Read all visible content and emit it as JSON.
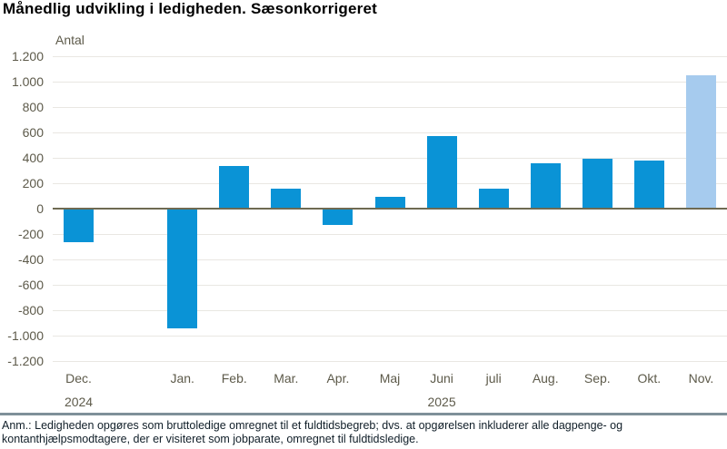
{
  "title": "Månedlig udvikling i ledigheden. Sæsonkorrigeret",
  "chart_data": {
    "type": "bar",
    "title": "Månedlig udvikling i ledigheden. Sæsonkorrigeret",
    "ylabel": "Antal",
    "ylim": [
      -1200,
      1200
    ],
    "ytick_step": 200,
    "ytick_labels": [
      "1.200",
      "1.000",
      "800",
      "600",
      "400",
      "200",
      "0",
      "-200",
      "-400",
      "-600",
      "-800",
      "-1.000",
      "-1.200"
    ],
    "grid": "horizontal",
    "legend": "none",
    "categories": [
      "Dec.",
      "",
      "Jan.",
      "Feb.",
      "Mar.",
      "Apr.",
      "Maj",
      "Juni",
      "juli",
      "Aug.",
      "Sep.",
      "Okt.",
      "Nov."
    ],
    "values": [
      -265,
      null,
      -940,
      335,
      155,
      -130,
      90,
      570,
      155,
      360,
      395,
      380,
      1050
    ],
    "year_rows": [
      {
        "slot": 0,
        "label": "2024"
      },
      {
        "slot": 7,
        "label": "2025"
      }
    ],
    "highlight_slot": 12,
    "colors": {
      "bar": "#0a93d6",
      "bar_highlight": "#a6cbee",
      "grid": "#e9e7e2",
      "zero_axis": "#6e6a52",
      "tick_text": "#5d5a4a",
      "title_text": "#000000",
      "separator": "#7e9099",
      "footnote_text": "#101e28"
    }
  },
  "footnote_lines": [
    "Anm.: Ledigheden opgøres som bruttoledige omregnet til et fuldtidsbegreb; dvs. at opgørelsen inkluderer alle dagpenge- og",
    "kontanthjælpsmodtagere, der er visiteret som jobparate, omregnet til fuldtidsledige."
  ]
}
